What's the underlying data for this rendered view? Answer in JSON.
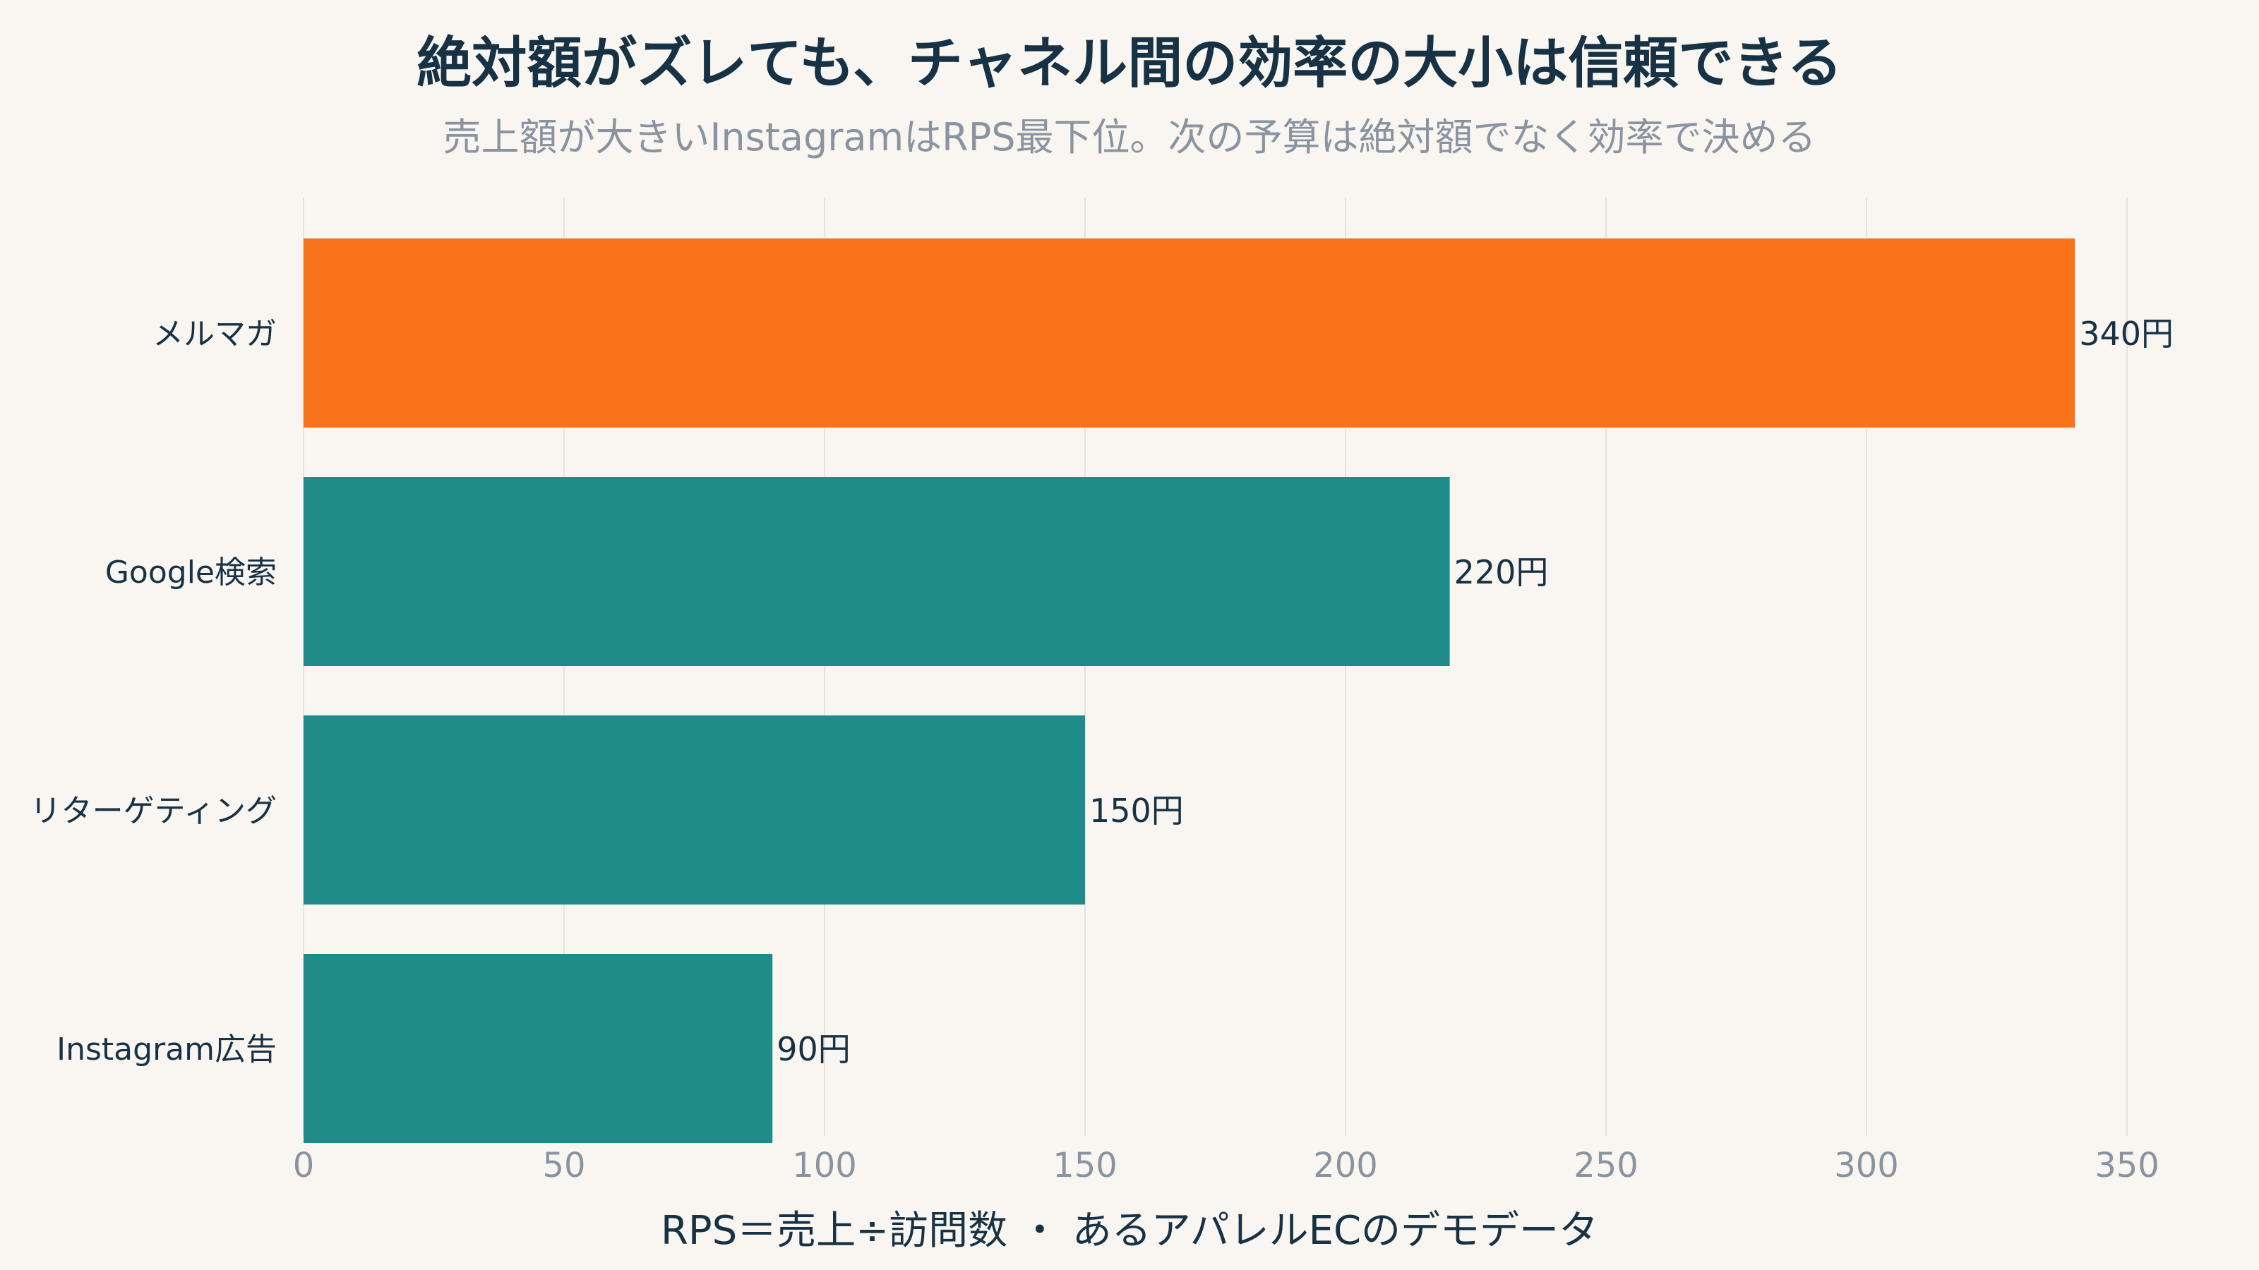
{
  "chart_data": {
    "type": "bar",
    "orientation": "horizontal",
    "title": "絶対額がズレても、チャネル間の効率の大小は信頼できる",
    "subtitle": "売上額が大きいInstagramはRPS最下位。次の予算は絶対額でなく効率で決める",
    "xlabel": "RPS＝売上÷訪問数 ・ あるアパレルECのデモデータ",
    "ylabel": "",
    "categories": [
      "メルマガ",
      "Google検索",
      "リターゲティング",
      "Instagram広告"
    ],
    "values": [
      340,
      220,
      150,
      90
    ],
    "value_labels": [
      "340円",
      "220円",
      "150円",
      "90円"
    ],
    "highlight_index": 0,
    "xlim": [
      0,
      360
    ],
    "xticks": [
      0,
      50,
      100,
      150,
      200,
      250,
      300,
      350
    ],
    "grid": true,
    "legend": "none",
    "colors": {
      "highlight": "#f87218",
      "default": "#1f8c89",
      "text": "#173244",
      "muted": "#8a94a0",
      "grid": "#e6e2dc",
      "background": "#f9f6f1"
    }
  }
}
